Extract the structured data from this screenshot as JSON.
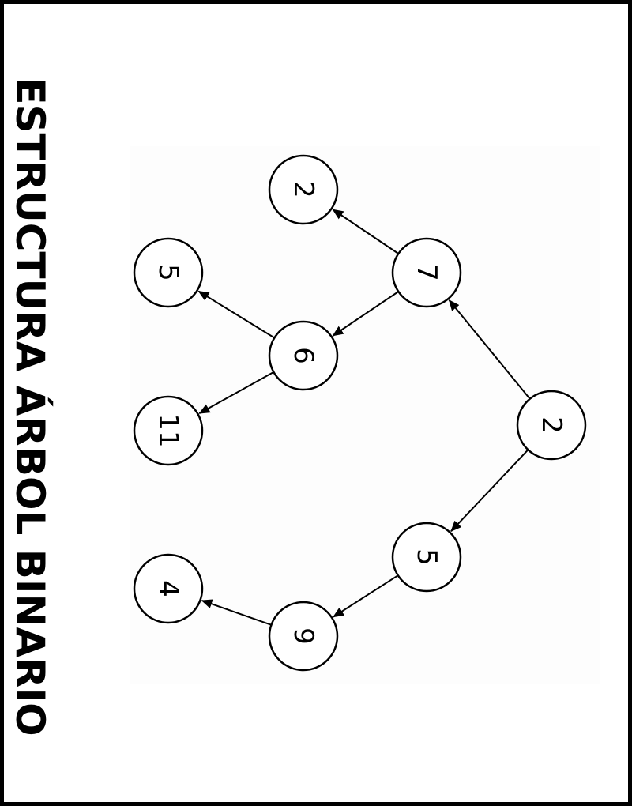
{
  "title": "ESTRUCTURA ÁRBOL BINARIO",
  "tree": {
    "nodes": [
      {
        "id": "root",
        "value": "2"
      },
      {
        "id": "n7",
        "value": "7"
      },
      {
        "id": "n5",
        "value": "5"
      },
      {
        "id": "n2leaf",
        "value": "2"
      },
      {
        "id": "n6",
        "value": "6"
      },
      {
        "id": "n9",
        "value": "9"
      },
      {
        "id": "n5leaf",
        "value": "5"
      },
      {
        "id": "n11",
        "value": "11"
      },
      {
        "id": "n4",
        "value": "4"
      }
    ],
    "edges": [
      {
        "from": "root",
        "to": "n7"
      },
      {
        "from": "root",
        "to": "n5"
      },
      {
        "from": "n7",
        "to": "n2leaf"
      },
      {
        "from": "n7",
        "to": "n6"
      },
      {
        "from": "n6",
        "to": "n5leaf"
      },
      {
        "from": "n6",
        "to": "n11"
      },
      {
        "from": "n5",
        "to": "n9"
      },
      {
        "from": "n9",
        "to": "n4"
      }
    ]
  }
}
